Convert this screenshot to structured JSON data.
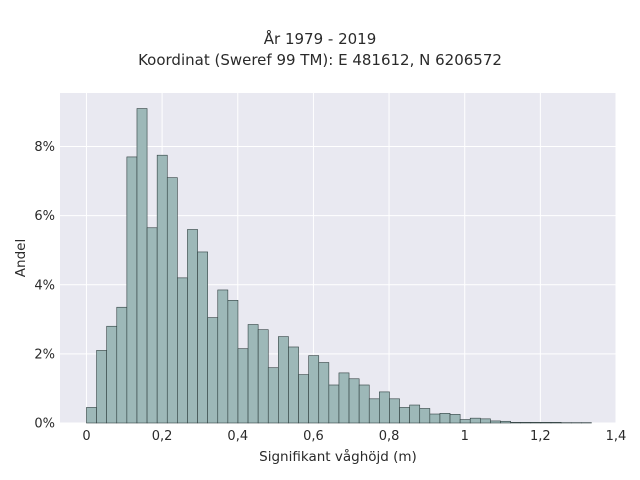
{
  "chart_data": {
    "type": "bar",
    "title": "År 1979 - 2019",
    "subtitle": "Koordinat (Sweref 99 TM): E 481612, N 6206572",
    "xlabel": "Signifikant våghöjd (m)",
    "ylabel": "Andel",
    "xlim": [
      -0.07,
      1.4
    ],
    "ylim": [
      0,
      9.55
    ],
    "x_ticks": [
      0,
      0.2,
      0.4,
      0.6,
      0.8,
      1.0,
      1.2,
      1.4
    ],
    "x_tick_labels": [
      "0",
      "0,2",
      "0,4",
      "0,6",
      "0,8",
      "1",
      "1,2",
      "1,4"
    ],
    "y_ticks": [
      0,
      2,
      4,
      6,
      8
    ],
    "y_tick_labels": [
      "0%",
      "2%",
      "4%",
      "6%",
      "8%"
    ],
    "grid": true,
    "bin_start": 0,
    "bin_width": 0.0267,
    "values": [
      0.45,
      2.1,
      2.8,
      3.35,
      7.7,
      9.1,
      5.65,
      7.75,
      7.1,
      4.2,
      5.6,
      4.95,
      3.05,
      3.85,
      3.55,
      2.15,
      2.85,
      2.7,
      1.6,
      2.5,
      2.2,
      1.4,
      1.95,
      1.75,
      1.1,
      1.45,
      1.28,
      1.1,
      0.7,
      0.9,
      0.7,
      0.45,
      0.52,
      0.42,
      0.26,
      0.28,
      0.25,
      0.1,
      0.14,
      0.12,
      0.06,
      0.05,
      0.02,
      0.02,
      0.02,
      0.02,
      0.02,
      0.01,
      0.01,
      0.01
    ],
    "colors": {
      "bar_fill": "#9db8b8",
      "bar_edge": "#2f3f3f",
      "plot_bg": "#e9e9f1",
      "grid": "#ffffff"
    }
  }
}
